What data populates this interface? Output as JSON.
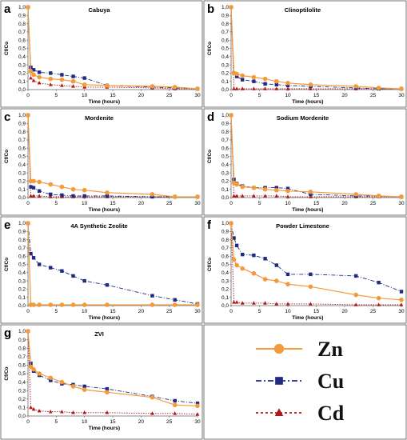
{
  "colors": {
    "Zn": "#f39a3c",
    "Cu": "#1f2a80",
    "Cd": "#b01717"
  },
  "legend": [
    {
      "name": "Zn",
      "marker": "circle",
      "line": "solid"
    },
    {
      "name": "Cu",
      "marker": "square",
      "line": "dashdot"
    },
    {
      "name": "Cd",
      "marker": "triangle",
      "line": "dotted"
    }
  ],
  "chart_data": [
    {
      "letter": "a",
      "title": "Cabuya",
      "type": "line",
      "xlabel": "Time (hours)",
      "ylabel": "Cf/Co",
      "xlim": [
        0,
        30
      ],
      "ylim": [
        0,
        1
      ],
      "xticks": [
        0,
        5,
        10,
        15,
        20,
        25,
        30
      ],
      "yticks": [
        "0,0",
        "0,1",
        "0,2",
        "0,3",
        "0,4",
        "0,5",
        "0,6",
        "0,7",
        "0,8",
        "0,9",
        "1,0"
      ],
      "series": [
        {
          "name": "Zn",
          "x": [
            0,
            0.5,
            1,
            2,
            4,
            6,
            8,
            10,
            14,
            22,
            26,
            30
          ],
          "y": [
            1,
            0.22,
            0.18,
            0.15,
            0.13,
            0.12,
            0.1,
            0.06,
            0.05,
            0.04,
            0.03,
            0.01
          ]
        },
        {
          "name": "Cu",
          "x": [
            0,
            0.5,
            1,
            2,
            4,
            6,
            8,
            10,
            14,
            22,
            26,
            30
          ],
          "y": [
            1,
            0.27,
            0.24,
            0.21,
            0.2,
            0.18,
            0.16,
            0.14,
            0.05,
            0.03,
            0.02,
            0.01
          ]
        },
        {
          "name": "Cd",
          "x": [
            0,
            0.5,
            1,
            2,
            4,
            6,
            8,
            10,
            14,
            22,
            26,
            30
          ],
          "y": [
            1,
            0.14,
            0.11,
            0.08,
            0.06,
            0.05,
            0.04,
            0.03,
            0.03,
            0.02,
            0.01,
            0.01
          ]
        }
      ]
    },
    {
      "letter": "b",
      "title": "Clinoptilolite",
      "type": "line",
      "xlabel": "Time (hours)",
      "ylabel": "Cf/Co",
      "xlim": [
        0,
        30
      ],
      "ylim": [
        0,
        1
      ],
      "xticks": [
        0,
        5,
        10,
        15,
        20,
        25,
        30
      ],
      "yticks": [
        "0,0",
        "0,1",
        "0,2",
        "0,3",
        "0,4",
        "0,5",
        "0,6",
        "0,7",
        "0,8",
        "0,9",
        "1,0"
      ],
      "series": [
        {
          "name": "Zn",
          "x": [
            0,
            0.5,
            1,
            2,
            4,
            6,
            8,
            10,
            14,
            22,
            26,
            30
          ],
          "y": [
            1,
            0.2,
            0.19,
            0.17,
            0.15,
            0.13,
            0.1,
            0.08,
            0.06,
            0.04,
            0.02,
            0.01
          ]
        },
        {
          "name": "Cu",
          "x": [
            0,
            0.5,
            1,
            2,
            4,
            6,
            8,
            10,
            14,
            22,
            26,
            30
          ],
          "y": [
            1,
            0.2,
            0.16,
            0.12,
            0.1,
            0.07,
            0.06,
            0.05,
            0.04,
            0.02,
            0.01,
            0.01
          ]
        },
        {
          "name": "Cd",
          "x": [
            0,
            0.5,
            1,
            2,
            4,
            6,
            8,
            10,
            14,
            22,
            26,
            30
          ],
          "y": [
            1,
            0.01,
            0.01,
            0.01,
            0.01,
            0.01,
            0.01,
            0.01,
            0.01,
            0.01,
            0.01,
            0.01
          ]
        }
      ]
    },
    {
      "letter": "c",
      "title": "Mordenite",
      "type": "line",
      "xlabel": "Time (hours)",
      "ylabel": "Cf/Co",
      "xlim": [
        0,
        30
      ],
      "ylim": [
        0,
        1
      ],
      "xticks": [
        0,
        5,
        10,
        15,
        20,
        25,
        30
      ],
      "yticks": [
        "0,0",
        "0,1",
        "0,2",
        "0,3",
        "0,4",
        "0,5",
        "0,6",
        "0,7",
        "0,8",
        "0,9",
        "1,0"
      ],
      "series": [
        {
          "name": "Zn",
          "x": [
            0,
            0.5,
            1,
            2,
            4,
            6,
            8,
            10,
            14,
            22,
            26,
            30
          ],
          "y": [
            1,
            0.2,
            0.2,
            0.19,
            0.16,
            0.13,
            0.1,
            0.09,
            0.06,
            0.04,
            0.01,
            0.01
          ]
        },
        {
          "name": "Cu",
          "x": [
            0,
            0.5,
            1,
            2,
            4,
            6,
            8,
            10,
            14,
            22,
            26,
            30
          ],
          "y": [
            1,
            0.13,
            0.12,
            0.08,
            0.04,
            0.03,
            0.02,
            0.02,
            0.02,
            0.01,
            0.01,
            0.01
          ]
        },
        {
          "name": "Cd",
          "x": [
            0,
            0.5,
            1,
            2,
            4,
            6,
            8,
            10,
            14,
            22,
            26,
            30
          ],
          "y": [
            1,
            0.02,
            0.02,
            0.02,
            0.01,
            0.01,
            0.01,
            0.01,
            0.01,
            0.01,
            0.01,
            0.01
          ]
        }
      ]
    },
    {
      "letter": "d",
      "title": "Sodium  Mordenite",
      "type": "line",
      "xlabel": "Time (hours)",
      "ylabel": "Cf/Co",
      "xlim": [
        0,
        30
      ],
      "ylim": [
        0,
        1
      ],
      "xticks": [
        0,
        5,
        10,
        15,
        20,
        25,
        30
      ],
      "yticks": [
        "0,0",
        "0,1",
        "0,2",
        "0,3",
        "0,4",
        "0,5",
        "0,6",
        "0,7",
        "0,8",
        "0,9",
        "1,0"
      ],
      "series": [
        {
          "name": "Zn",
          "x": [
            0,
            0.5,
            1,
            2,
            4,
            6,
            8,
            10,
            14,
            22,
            26,
            30
          ],
          "y": [
            1,
            0.18,
            0.16,
            0.13,
            0.12,
            0.1,
            0.09,
            0.08,
            0.07,
            0.04,
            0.02,
            0.01
          ]
        },
        {
          "name": "Cu",
          "x": [
            0,
            0.5,
            1,
            2,
            4,
            6,
            8,
            10,
            14,
            22,
            26,
            30
          ],
          "y": [
            1,
            0.22,
            0.17,
            0.14,
            0.12,
            0.12,
            0.12,
            0.11,
            0.04,
            0.02,
            0.02,
            0.01
          ]
        },
        {
          "name": "Cd",
          "x": [
            0,
            0.5,
            1,
            2,
            4,
            6,
            8,
            10,
            14,
            22,
            26,
            30
          ],
          "y": [
            1,
            0.02,
            0.02,
            0.02,
            0.02,
            0.02,
            0.02,
            0.01,
            0.01,
            0.01,
            0.01,
            0.01
          ]
        }
      ]
    },
    {
      "letter": "e",
      "title": "4A Synthetic Zeolite",
      "type": "line",
      "xlabel": "Time (hours)",
      "ylabel": "Cf/Co",
      "xlim": [
        0,
        30
      ],
      "ylim": [
        0,
        1
      ],
      "xticks": [
        0,
        5,
        10,
        15,
        20,
        25,
        30
      ],
      "yticks": [
        "0,0",
        "0,1",
        "0,2",
        "0,3",
        "0,4",
        "0,5",
        "0,6",
        "0,7",
        "0,8",
        "0,9",
        "1,0"
      ],
      "series": [
        {
          "name": "Zn",
          "x": [
            0,
            0.5,
            1,
            2,
            4,
            6,
            8,
            10,
            14,
            22,
            26,
            30
          ],
          "y": [
            1,
            0.01,
            0.01,
            0.01,
            0.01,
            0.01,
            0.01,
            0.01,
            0.01,
            0.01,
            0.01,
            0.01
          ]
        },
        {
          "name": "Cu",
          "x": [
            0,
            0.5,
            1,
            2,
            4,
            6,
            8,
            10,
            14,
            22,
            26,
            30
          ],
          "y": [
            1,
            0.63,
            0.58,
            0.5,
            0.46,
            0.42,
            0.36,
            0.3,
            0.25,
            0.12,
            0.07,
            0.02
          ]
        },
        {
          "name": "Cd",
          "x": [
            0,
            0.5,
            1,
            2,
            4,
            6,
            8,
            10,
            14,
            22,
            26,
            30
          ],
          "y": [
            1,
            0.01,
            0.01,
            0.01,
            0.01,
            0.01,
            0.01,
            0.01,
            0.01,
            0.01,
            0.01,
            0.01
          ]
        }
      ]
    },
    {
      "letter": "f",
      "title": "Powder   Limestone",
      "type": "line",
      "xlabel": "Time (hours)",
      "ylabel": "Cf/Co",
      "xlim": [
        0,
        30
      ],
      "ylim": [
        0,
        1
      ],
      "xticks": [
        0,
        5,
        10,
        15,
        20,
        25,
        30
      ],
      "yticks": [
        "0,0",
        "0,1",
        "0,2",
        "0,3",
        "0,4",
        "0,5",
        "0,6",
        "0,7",
        "0,8",
        "0,9",
        "1,0"
      ],
      "series": [
        {
          "name": "Zn",
          "x": [
            0,
            0.5,
            1,
            2,
            4,
            6,
            8,
            10,
            14,
            22,
            26,
            30
          ],
          "y": [
            1,
            0.56,
            0.49,
            0.45,
            0.39,
            0.32,
            0.3,
            0.26,
            0.23,
            0.13,
            0.09,
            0.07
          ]
        },
        {
          "name": "Cu",
          "x": [
            0,
            0.5,
            1,
            2,
            4,
            6,
            8,
            10,
            14,
            22,
            26,
            30
          ],
          "y": [
            1,
            0.82,
            0.73,
            0.62,
            0.61,
            0.57,
            0.49,
            0.38,
            0.38,
            0.36,
            0.28,
            0.17
          ]
        },
        {
          "name": "Cd",
          "x": [
            0,
            0.5,
            1,
            2,
            4,
            6,
            8,
            10,
            14,
            22,
            26,
            30
          ],
          "y": [
            1,
            0.04,
            0.04,
            0.03,
            0.03,
            0.03,
            0.02,
            0.02,
            0.02,
            0.01,
            0.01,
            0.01
          ]
        }
      ]
    },
    {
      "letter": "g",
      "title": "ZVI",
      "type": "line",
      "xlabel": "Time (hours)",
      "ylabel": "Cf/Co",
      "xlim": [
        0,
        30
      ],
      "ylim": [
        0,
        1
      ],
      "xticks": [
        0,
        5,
        10,
        15,
        20,
        25,
        30
      ],
      "yticks": [
        "0,0",
        "0,1",
        "0,2",
        "0,3",
        "0,4",
        "0,5",
        "0,6",
        "0,7",
        "0,8",
        "0,9",
        "1,0"
      ],
      "series": [
        {
          "name": "Zn",
          "x": [
            0,
            0.5,
            1,
            2,
            4,
            6,
            8,
            10,
            14,
            22,
            26,
            30
          ],
          "y": [
            1,
            0.58,
            0.55,
            0.5,
            0.45,
            0.4,
            0.35,
            0.31,
            0.28,
            0.22,
            0.13,
            0.12
          ]
        },
        {
          "name": "Cu",
          "x": [
            0,
            0.5,
            1,
            2,
            4,
            6,
            8,
            10,
            14,
            22,
            26,
            30
          ],
          "y": [
            1,
            0.62,
            0.53,
            0.48,
            0.42,
            0.38,
            0.37,
            0.35,
            0.32,
            0.23,
            0.18,
            0.15
          ]
        },
        {
          "name": "Cd",
          "x": [
            0,
            0.5,
            1,
            2,
            4,
            6,
            8,
            10,
            14,
            22,
            26,
            30
          ],
          "y": [
            1,
            0.1,
            0.08,
            0.06,
            0.05,
            0.05,
            0.04,
            0.04,
            0.04,
            0.03,
            0.03,
            0.02
          ]
        }
      ]
    }
  ]
}
